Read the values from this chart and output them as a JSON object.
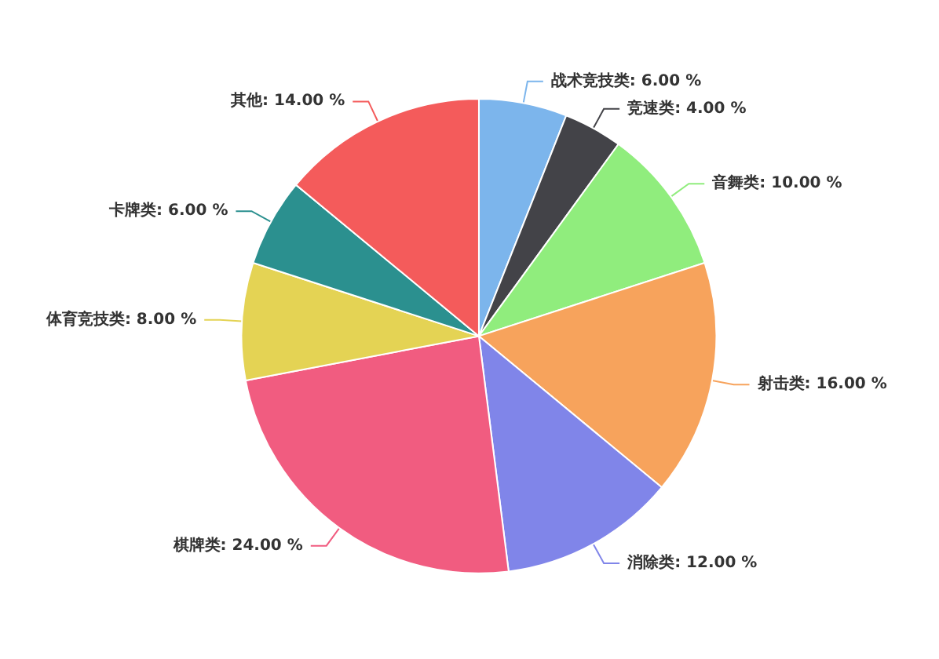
{
  "chart_data": {
    "type": "pie",
    "categories": [
      "战术竞技类",
      "竞速类",
      "音舞类",
      "射击类",
      "消除类",
      "棋牌类",
      "体育竞技类",
      "卡牌类",
      "其他"
    ],
    "values": [
      6,
      4,
      10,
      16,
      12,
      24,
      8,
      6,
      14
    ],
    "value_labels": [
      "6.00 %",
      "4.00 %",
      "10.00 %",
      "16.00 %",
      "12.00 %",
      "24.00 %",
      "8.00 %",
      "6.00 %",
      "14.00 %"
    ],
    "colors": [
      "#7cb5ec",
      "#434348",
      "#90ed7d",
      "#f7a35c",
      "#8085e9",
      "#f15c80",
      "#e4d354",
      "#2b908f",
      "#f45b5b"
    ],
    "legend": false
  }
}
